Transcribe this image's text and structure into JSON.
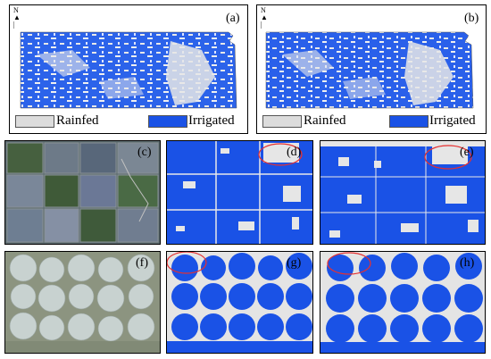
{
  "panels": {
    "a": {
      "label": "(a)"
    },
    "b": {
      "label": "(b)"
    },
    "c": {
      "label": "(c)"
    },
    "d": {
      "label": "(d)"
    },
    "e": {
      "label": "(e)"
    },
    "f": {
      "label": "(f)"
    },
    "g": {
      "label": "(g)"
    },
    "h": {
      "label": "(h)"
    }
  },
  "legend": {
    "rainfed": {
      "label": "Rainfed",
      "color": "#dcdcdc"
    },
    "irrigated": {
      "label": "Irrigated",
      "color": "#1a52e6"
    }
  },
  "north_label": "N",
  "colors": {
    "irrigated": "#1a52e6",
    "rainfed": "#dedede",
    "highlight": "#e63030"
  }
}
